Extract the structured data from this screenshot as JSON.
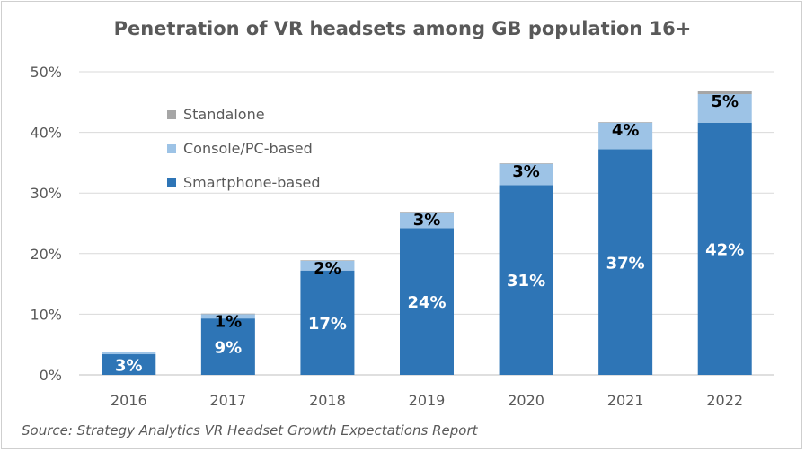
{
  "chart_data": {
    "type": "bar",
    "stacked": true,
    "title": "Penetration of VR headsets among GB population 16+",
    "source": "Source: Strategy Analytics VR Headset Growth Expectations Report",
    "categories": [
      "2016",
      "2017",
      "2018",
      "2019",
      "2020",
      "2021",
      "2022"
    ],
    "series": [
      {
        "name": "Smartphone-based",
        "color": "#2e75b6",
        "values": [
          3.4,
          9.3,
          17.2,
          24.2,
          31.3,
          37.2,
          41.6
        ],
        "labels": [
          "3%",
          "9%",
          "17%",
          "24%",
          "31%",
          "37%",
          "42%"
        ],
        "label_color": "#ffffff"
      },
      {
        "name": "Console/PC-based",
        "color": "#9dc3e6",
        "values": [
          0.3,
          0.7,
          1.6,
          2.6,
          3.5,
          4.4,
          4.7
        ],
        "labels": [
          "",
          "1%",
          "2%",
          "3%",
          "3%",
          "4%",
          "5%"
        ],
        "label_color": "#000000"
      },
      {
        "name": "Standalone",
        "color": "#a6a6a6",
        "values": [
          0,
          0.1,
          0.1,
          0.1,
          0.1,
          0.1,
          0.5
        ],
        "labels": [
          "",
          "",
          "",
          "",
          "",
          "",
          ""
        ],
        "label_color": "#000000"
      }
    ],
    "ylim": [
      0,
      50
    ],
    "yticks": [
      0,
      10,
      20,
      30,
      40,
      50
    ],
    "ytick_labels": [
      "0%",
      "10%",
      "20%",
      "30%",
      "40%",
      "50%"
    ],
    "grid": true,
    "legend_position": "top-left"
  }
}
